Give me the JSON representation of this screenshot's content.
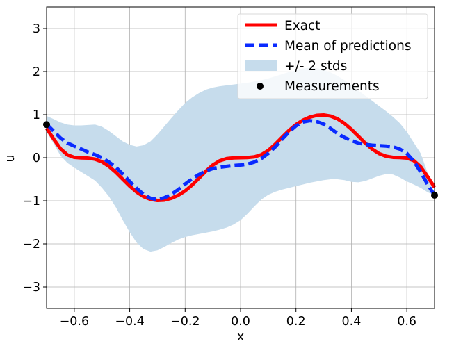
{
  "chart_data": {
    "type": "line",
    "xlabel": "x",
    "ylabel": "u",
    "xlim": [
      -0.7,
      0.7
    ],
    "ylim": [
      -3.5,
      3.5
    ],
    "xticks": [
      -0.6,
      -0.4,
      -0.2,
      0.0,
      0.2,
      0.4,
      0.6
    ],
    "yticks": [
      -3,
      -2,
      -1,
      0,
      1,
      2,
      3
    ],
    "xtick_labels": [
      "−0.6",
      "−0.4",
      "−0.2",
      "0.0",
      "0.2",
      "0.4",
      "0.6"
    ],
    "ytick_labels": [
      "−3",
      "−2",
      "−1",
      "0",
      "1",
      "2",
      "3"
    ],
    "grid": true,
    "legend_position": "top-right",
    "colors": {
      "exact": "#ff0000",
      "mean": "#0a2aff",
      "band": "#c6dcec",
      "measurements": "#000000",
      "grid": "#b0b0b0"
    },
    "series": [
      {
        "name": "Exact",
        "style": "solid",
        "x": [
          -0.7,
          -0.675,
          -0.65,
          -0.625,
          -0.6,
          -0.575,
          -0.55,
          -0.525,
          -0.5,
          -0.475,
          -0.45,
          -0.425,
          -0.4,
          -0.375,
          -0.35,
          -0.325,
          -0.3,
          -0.275,
          -0.25,
          -0.225,
          -0.2,
          -0.175,
          -0.15,
          -0.125,
          -0.1,
          -0.075,
          -0.05,
          -0.025,
          0.0,
          0.025,
          0.05,
          0.075,
          0.1,
          0.125,
          0.15,
          0.175,
          0.2,
          0.225,
          0.25,
          0.275,
          0.3,
          0.325,
          0.35,
          0.375,
          0.4,
          0.425,
          0.45,
          0.475,
          0.5,
          0.525,
          0.55,
          0.575,
          0.6,
          0.625,
          0.65,
          0.675,
          0.7
        ],
        "y": [
          0.686,
          0.439,
          0.211,
          0.066,
          0.008,
          -0.004,
          -0.009,
          -0.034,
          -0.096,
          -0.2,
          -0.339,
          -0.5,
          -0.659,
          -0.797,
          -0.902,
          -0.967,
          -0.992,
          -0.983,
          -0.943,
          -0.872,
          -0.77,
          -0.635,
          -0.476,
          -0.312,
          -0.169,
          -0.07,
          -0.02,
          -0.004,
          0.0,
          0.004,
          0.02,
          0.07,
          0.169,
          0.312,
          0.476,
          0.635,
          0.77,
          0.872,
          0.943,
          0.983,
          0.992,
          0.967,
          0.902,
          0.797,
          0.659,
          0.5,
          0.339,
          0.2,
          0.096,
          0.034,
          0.009,
          0.004,
          -0.008,
          -0.066,
          -0.211,
          -0.439,
          -0.686
        ]
      },
      {
        "name": "Mean of predictions",
        "style": "dashed",
        "x": [
          -0.7,
          -0.675,
          -0.65,
          -0.625,
          -0.6,
          -0.575,
          -0.55,
          -0.525,
          -0.5,
          -0.475,
          -0.45,
          -0.425,
          -0.4,
          -0.375,
          -0.35,
          -0.325,
          -0.3,
          -0.275,
          -0.25,
          -0.225,
          -0.2,
          -0.175,
          -0.15,
          -0.125,
          -0.1,
          -0.075,
          -0.05,
          -0.025,
          0.0,
          0.025,
          0.05,
          0.075,
          0.1,
          0.125,
          0.15,
          0.175,
          0.2,
          0.225,
          0.25,
          0.275,
          0.3,
          0.325,
          0.35,
          0.375,
          0.4,
          0.425,
          0.45,
          0.475,
          0.5,
          0.525,
          0.55,
          0.575,
          0.6,
          0.625,
          0.65,
          0.675,
          0.7
        ],
        "y": [
          0.78,
          0.62,
          0.46,
          0.34,
          0.27,
          0.2,
          0.13,
          0.07,
          0.0,
          -0.1,
          -0.22,
          -0.38,
          -0.55,
          -0.71,
          -0.85,
          -0.94,
          -0.97,
          -0.93,
          -0.85,
          -0.74,
          -0.61,
          -0.49,
          -0.39,
          -0.31,
          -0.25,
          -0.22,
          -0.2,
          -0.18,
          -0.17,
          -0.15,
          -0.1,
          -0.02,
          0.1,
          0.25,
          0.43,
          0.6,
          0.74,
          0.83,
          0.86,
          0.84,
          0.78,
          0.68,
          0.56,
          0.47,
          0.4,
          0.34,
          0.31,
          0.29,
          0.28,
          0.27,
          0.25,
          0.2,
          0.1,
          -0.08,
          -0.33,
          -0.62,
          -0.87
        ]
      }
    ],
    "band": {
      "name": "+/- 2 stds",
      "x": [
        -0.7,
        -0.675,
        -0.65,
        -0.625,
        -0.6,
        -0.575,
        -0.55,
        -0.525,
        -0.5,
        -0.475,
        -0.45,
        -0.425,
        -0.4,
        -0.375,
        -0.35,
        -0.325,
        -0.3,
        -0.275,
        -0.25,
        -0.225,
        -0.2,
        -0.175,
        -0.15,
        -0.125,
        -0.1,
        -0.075,
        -0.05,
        -0.025,
        0.0,
        0.025,
        0.05,
        0.075,
        0.1,
        0.125,
        0.15,
        0.175,
        0.2,
        0.225,
        0.25,
        0.275,
        0.3,
        0.325,
        0.35,
        0.375,
        0.4,
        0.425,
        0.45,
        0.475,
        0.5,
        0.525,
        0.55,
        0.575,
        0.6,
        0.625,
        0.65,
        0.675,
        0.7
      ],
      "upper": [
        0.97,
        0.9,
        0.82,
        0.77,
        0.75,
        0.75,
        0.76,
        0.77,
        0.72,
        0.62,
        0.5,
        0.38,
        0.3,
        0.26,
        0.29,
        0.38,
        0.54,
        0.73,
        0.92,
        1.1,
        1.27,
        1.4,
        1.5,
        1.58,
        1.63,
        1.66,
        1.68,
        1.7,
        1.72,
        1.74,
        1.77,
        1.8,
        1.84,
        1.89,
        1.94,
        1.99,
        2.03,
        2.07,
        2.09,
        2.08,
        2.04,
        1.98,
        1.9,
        1.8,
        1.68,
        1.56,
        1.44,
        1.32,
        1.2,
        1.08,
        0.95,
        0.8,
        0.6,
        0.35,
        0.1,
        -0.35,
        -0.87
      ],
      "lower": [
        0.6,
        0.33,
        0.05,
        -0.12,
        -0.23,
        -0.33,
        -0.43,
        -0.53,
        -0.7,
        -0.9,
        -1.15,
        -1.45,
        -1.73,
        -1.97,
        -2.12,
        -2.18,
        -2.15,
        -2.07,
        -1.98,
        -1.9,
        -1.84,
        -1.8,
        -1.77,
        -1.74,
        -1.71,
        -1.67,
        -1.62,
        -1.55,
        -1.45,
        -1.3,
        -1.13,
        -0.97,
        -0.86,
        -0.79,
        -0.74,
        -0.7,
        -0.66,
        -0.62,
        -0.58,
        -0.55,
        -0.52,
        -0.5,
        -0.5,
        -0.52,
        -0.56,
        -0.57,
        -0.54,
        -0.48,
        -0.42,
        -0.38,
        -0.39,
        -0.46,
        -0.55,
        -0.62,
        -0.7,
        -0.8,
        -0.87
      ]
    },
    "measurements": {
      "name": "Measurements",
      "x": [
        -0.7,
        0.7
      ],
      "y": [
        0.77,
        -0.87
      ]
    }
  }
}
